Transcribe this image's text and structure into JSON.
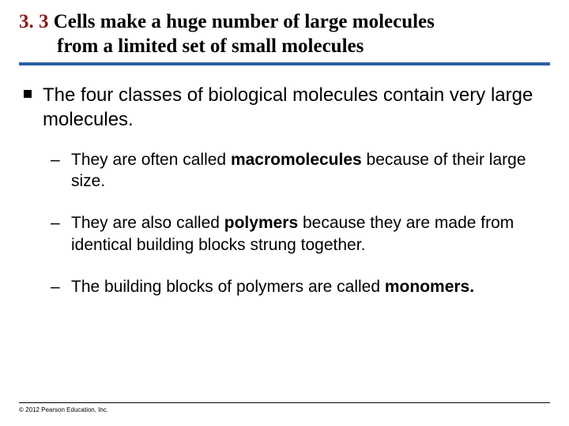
{
  "colors": {
    "section_number": "#8b1a1a",
    "rule": "#2b5fa3",
    "text": "#000000",
    "background": "#ffffff"
  },
  "typography": {
    "title_family": "Times New Roman",
    "title_size_pt": 25,
    "title_weight": "bold",
    "body_family": "Arial",
    "lvl1_size_pt": 24,
    "lvl2_size_pt": 21,
    "footer_size_pt": 8
  },
  "title": {
    "section_number": "3. 3",
    "line1": " Cells make a huge number of large molecules",
    "line2": "from a limited set of small molecules"
  },
  "bullets": {
    "lvl1": {
      "text": "The four classes of biological molecules contain very large molecules."
    },
    "lvl2": [
      {
        "pre": "They are often called ",
        "bold": "macromolecules",
        "post": " because of their large size."
      },
      {
        "pre": "They are also called ",
        "bold": "polymers",
        "post": " because they are made from identical building blocks strung together."
      },
      {
        "pre": "The building blocks of polymers are called ",
        "bold": "monomers.",
        "post": ""
      }
    ]
  },
  "footer": {
    "copyright": "© 2012 Pearson Education, Inc."
  }
}
